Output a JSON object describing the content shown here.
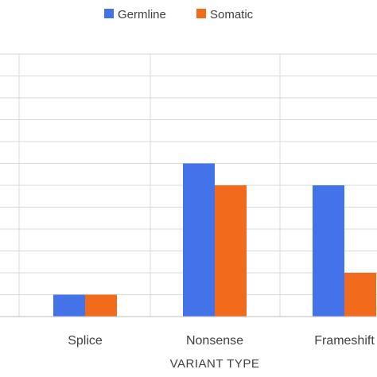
{
  "chart_data": {
    "type": "bar",
    "title": "",
    "xlabel": "VARIANT TYPE",
    "ylabel": "",
    "categories": [
      "Splice",
      "Nonsense",
      "Frameshift"
    ],
    "series": [
      {
        "name": "Germline",
        "color": "#4472E8",
        "values": [
          1,
          7,
          6
        ]
      },
      {
        "name": "Somatic",
        "color": "#F26A1B",
        "values": [
          1,
          6,
          2
        ]
      }
    ],
    "ylim": [
      0,
      12
    ],
    "grid": true,
    "legend_position": "top"
  }
}
